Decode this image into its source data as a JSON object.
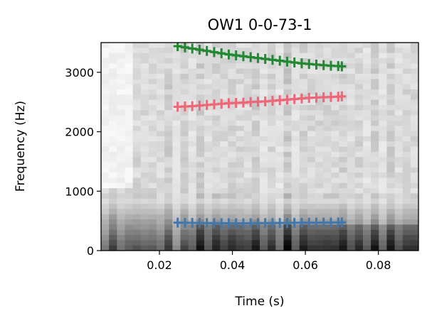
{
  "chart_data": {
    "type": "scatter",
    "title": "OW1 0-0-73-1",
    "xlabel": "Time (s)",
    "ylabel": "Frequency (Hz)",
    "xlim": [
      0.004,
      0.091
    ],
    "ylim": [
      0,
      3500
    ],
    "x_ticks": [
      0.02,
      0.04,
      0.06,
      0.08
    ],
    "x_tick_labels": [
      "0.02",
      "0.04",
      "0.06",
      "0.08"
    ],
    "y_ticks": [
      0,
      1000,
      2000,
      3000
    ],
    "y_tick_labels": [
      "0",
      "1000",
      "2000",
      "3000"
    ],
    "grid": false,
    "legend": "none",
    "background": "grayscale spectrogram",
    "series": [
      {
        "color": "#4477aa",
        "x": [
          0.025,
          0.027,
          0.029,
          0.031,
          0.033,
          0.035,
          0.037,
          0.039,
          0.041,
          0.043,
          0.045,
          0.047,
          0.049,
          0.051,
          0.053,
          0.055,
          0.057,
          0.059,
          0.061,
          0.063,
          0.065,
          0.067,
          0.069,
          0.07
        ],
        "y": [
          470,
          468,
          466,
          465,
          463,
          462,
          461,
          460,
          459,
          460,
          461,
          462,
          463,
          464,
          465,
          466,
          467,
          468,
          469,
          470,
          471,
          472,
          473,
          474
        ]
      },
      {
        "color": "#ee6677",
        "x": [
          0.025,
          0.027,
          0.029,
          0.031,
          0.033,
          0.035,
          0.037,
          0.039,
          0.041,
          0.043,
          0.045,
          0.047,
          0.049,
          0.051,
          0.053,
          0.055,
          0.057,
          0.059,
          0.061,
          0.063,
          0.065,
          0.067,
          0.069,
          0.07
        ],
        "y": [
          2420,
          2425,
          2430,
          2440,
          2450,
          2460,
          2470,
          2480,
          2485,
          2490,
          2500,
          2505,
          2510,
          2520,
          2530,
          2540,
          2550,
          2560,
          2570,
          2575,
          2580,
          2585,
          2590,
          2595
        ]
      },
      {
        "color": "#228833",
        "x": [
          0.025,
          0.027,
          0.029,
          0.031,
          0.033,
          0.035,
          0.037,
          0.039,
          0.041,
          0.043,
          0.045,
          0.047,
          0.049,
          0.051,
          0.053,
          0.055,
          0.057,
          0.059,
          0.061,
          0.063,
          0.065,
          0.067,
          0.069,
          0.07
        ],
        "y": [
          3440,
          3420,
          3400,
          3380,
          3360,
          3340,
          3320,
          3300,
          3285,
          3270,
          3255,
          3240,
          3225,
          3210,
          3195,
          3180,
          3165,
          3150,
          3140,
          3130,
          3120,
          3110,
          3105,
          3100
        ]
      }
    ]
  }
}
